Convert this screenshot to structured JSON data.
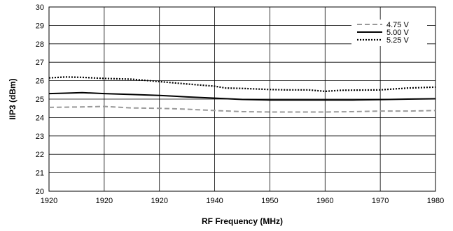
{
  "chart_data": {
    "type": "line",
    "title": "",
    "xlabel": "RF Frequency (MHz)",
    "ylabel": "IIP3 (dBm)",
    "ylim": [
      20,
      30
    ],
    "y_ticks": [
      20,
      21,
      22,
      23,
      24,
      25,
      26,
      27,
      28,
      29,
      30
    ],
    "x_ticks": [
      "1920",
      "1920",
      "1920",
      "1940",
      "1950",
      "1960",
      "1970",
      "1980"
    ],
    "grid": true,
    "legend_position": "top-right",
    "series": [
      {
        "name": "4.75 V",
        "style": "dashed",
        "color": "#999999",
        "points": [
          [
            0,
            24.55
          ],
          [
            0.5,
            24.57
          ],
          [
            1.0,
            24.6
          ],
          [
            1.5,
            24.52
          ],
          [
            2.0,
            24.5
          ],
          [
            2.5,
            24.45
          ],
          [
            3.0,
            24.38
          ],
          [
            3.5,
            24.32
          ],
          [
            4.0,
            24.3
          ],
          [
            4.5,
            24.3
          ],
          [
            5.0,
            24.3
          ],
          [
            5.5,
            24.32
          ],
          [
            6.0,
            24.35
          ],
          [
            6.5,
            24.35
          ],
          [
            7.0,
            24.38
          ]
        ]
      },
      {
        "name": "5.00 V",
        "style": "solid",
        "color": "#000000",
        "points": [
          [
            0,
            25.3
          ],
          [
            0.3,
            25.32
          ],
          [
            0.6,
            25.35
          ],
          [
            1.0,
            25.3
          ],
          [
            1.5,
            25.25
          ],
          [
            2.0,
            25.2
          ],
          [
            2.5,
            25.12
          ],
          [
            3.0,
            25.05
          ],
          [
            3.5,
            24.98
          ],
          [
            4.0,
            24.95
          ],
          [
            4.5,
            24.95
          ],
          [
            5.0,
            24.95
          ],
          [
            5.5,
            24.95
          ],
          [
            6.0,
            24.97
          ],
          [
            6.5,
            25.0
          ],
          [
            7.0,
            25.02
          ]
        ]
      },
      {
        "name": "5.25 V",
        "style": "dotted",
        "color": "#000000",
        "points": [
          [
            0,
            26.15
          ],
          [
            0.3,
            26.2
          ],
          [
            0.6,
            26.18
          ],
          [
            1.0,
            26.12
          ],
          [
            1.5,
            26.08
          ],
          [
            2.0,
            25.95
          ],
          [
            2.5,
            25.82
          ],
          [
            3.0,
            25.7
          ],
          [
            3.2,
            25.6
          ],
          [
            3.5,
            25.58
          ],
          [
            4.0,
            25.52
          ],
          [
            4.3,
            25.5
          ],
          [
            4.7,
            25.5
          ],
          [
            5.0,
            25.42
          ],
          [
            5.3,
            25.48
          ],
          [
            6.0,
            25.5
          ],
          [
            6.5,
            25.6
          ],
          [
            7.0,
            25.65
          ]
        ]
      }
    ]
  }
}
